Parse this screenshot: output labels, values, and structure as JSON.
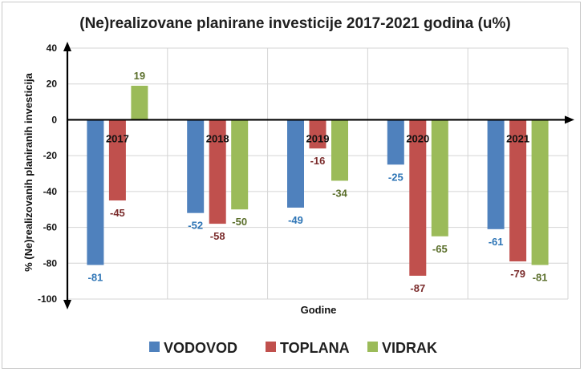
{
  "chart_data": {
    "type": "bar",
    "title": "(Ne)realizovane planirane investicije 2017-2021 godina (u%)",
    "xlabel": "Godine",
    "ylabel": "% (Ne)realizovanih planiranih investicija",
    "categories": [
      "2017",
      "2018",
      "2019",
      "2020",
      "2021"
    ],
    "ylim": [
      -100,
      40
    ],
    "yticks": [
      40,
      20,
      0,
      -20,
      -40,
      -60,
      -80,
      -100
    ],
    "grid": true,
    "legend_position": "bottom",
    "series": [
      {
        "name": "VODOVOD",
        "color": "#4f81bd",
        "label_color": "#2e75b6",
        "values": [
          -81,
          -52,
          -49,
          -25,
          -61
        ]
      },
      {
        "name": "TOPLANA",
        "color": "#c0504d",
        "label_color": "#7b2c2c",
        "values": [
          -45,
          -58,
          -16,
          -87,
          -79
        ]
      },
      {
        "name": "VIDRAK",
        "color": "#9bbb59",
        "label_color": "#5a6e2a",
        "values": [
          19,
          -50,
          -34,
          -65,
          -81
        ]
      }
    ]
  }
}
